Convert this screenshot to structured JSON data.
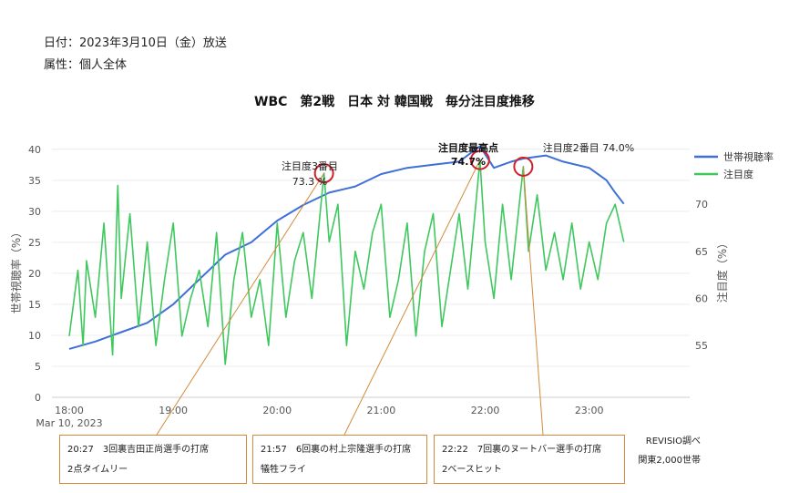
{
  "header": {
    "date_line": "日付：2023年3月10日（金）放送",
    "attr_line": "属性：個人全体"
  },
  "chart_data": {
    "type": "line",
    "title": "WBC　第2戦　日本 対 韓国戦　毎分注目度推移",
    "xlabel": "",
    "ylabel_left": "世帯視聴率（%）",
    "ylabel_right": "注目度（%）",
    "x_ticks": [
      "18:00",
      "19:00",
      "20:00",
      "21:00",
      "22:00",
      "23:00"
    ],
    "x_sub_label": "Mar 10, 2023",
    "x_range": [
      "17:50",
      "23:58"
    ],
    "y_left_range": [
      0,
      41
    ],
    "y_left_ticks": [
      0,
      5,
      10,
      15,
      20,
      25,
      30,
      35,
      40
    ],
    "y_right_range": [
      49.5,
      76.5
    ],
    "y_right_ticks": [
      55,
      60,
      65,
      70
    ],
    "grid": true,
    "legend_position": "top-right",
    "series": [
      {
        "name": "世帯視聴率",
        "axis": "left",
        "color": "#3f6fd8",
        "points": [
          [
            "18:00",
            7.8
          ],
          [
            "18:15",
            9
          ],
          [
            "18:30",
            10.5
          ],
          [
            "18:45",
            12
          ],
          [
            "19:00",
            15
          ],
          [
            "19:15",
            19
          ],
          [
            "19:30",
            23
          ],
          [
            "19:45",
            25
          ],
          [
            "20:00",
            28.5
          ],
          [
            "20:15",
            31
          ],
          [
            "20:30",
            33
          ],
          [
            "20:45",
            34
          ],
          [
            "21:00",
            36
          ],
          [
            "21:15",
            37
          ],
          [
            "21:30",
            37.5
          ],
          [
            "21:45",
            38
          ],
          [
            "21:57",
            40.5
          ],
          [
            "22:05",
            37
          ],
          [
            "22:15",
            38
          ],
          [
            "22:22",
            38.5
          ],
          [
            "22:35",
            39
          ],
          [
            "22:45",
            38
          ],
          [
            "23:00",
            37
          ],
          [
            "23:10",
            35
          ],
          [
            "23:15",
            33
          ],
          [
            "23:20",
            31.2
          ]
        ]
      },
      {
        "name": "注目度",
        "axis": "right",
        "color": "#3ec85e",
        "points": [
          [
            "18:00",
            56
          ],
          [
            "18:05",
            63
          ],
          [
            "18:08",
            55
          ],
          [
            "18:10",
            64
          ],
          [
            "18:15",
            58
          ],
          [
            "18:20",
            68
          ],
          [
            "18:25",
            54
          ],
          [
            "18:28",
            72
          ],
          [
            "18:30",
            60
          ],
          [
            "18:35",
            69
          ],
          [
            "18:40",
            57
          ],
          [
            "18:45",
            66
          ],
          [
            "18:50",
            55
          ],
          [
            "18:55",
            62
          ],
          [
            "19:00",
            68
          ],
          [
            "19:05",
            56
          ],
          [
            "19:10",
            60
          ],
          [
            "19:15",
            63
          ],
          [
            "19:20",
            57
          ],
          [
            "19:25",
            67
          ],
          [
            "19:30",
            53
          ],
          [
            "19:35",
            62
          ],
          [
            "19:40",
            67
          ],
          [
            "19:45",
            58
          ],
          [
            "19:50",
            62
          ],
          [
            "19:55",
            55
          ],
          [
            "20:00",
            68
          ],
          [
            "20:05",
            58
          ],
          [
            "20:10",
            64
          ],
          [
            "20:15",
            67
          ],
          [
            "20:20",
            60
          ],
          [
            "20:27",
            73.3
          ],
          [
            "20:30",
            66
          ],
          [
            "20:35",
            70
          ],
          [
            "20:40",
            55
          ],
          [
            "20:45",
            65
          ],
          [
            "20:50",
            61
          ],
          [
            "20:55",
            67
          ],
          [
            "21:00",
            70
          ],
          [
            "21:05",
            58
          ],
          [
            "21:10",
            62
          ],
          [
            "21:15",
            68
          ],
          [
            "21:20",
            56
          ],
          [
            "21:25",
            65
          ],
          [
            "21:30",
            69
          ],
          [
            "21:35",
            57
          ],
          [
            "21:40",
            63
          ],
          [
            "21:45",
            69
          ],
          [
            "21:50",
            61
          ],
          [
            "21:57",
            74.7
          ],
          [
            "22:00",
            66
          ],
          [
            "22:05",
            60
          ],
          [
            "22:10",
            70
          ],
          [
            "22:15",
            62
          ],
          [
            "22:22",
            74
          ],
          [
            "22:25",
            65
          ],
          [
            "22:30",
            71
          ],
          [
            "22:35",
            63
          ],
          [
            "22:40",
            67
          ],
          [
            "22:45",
            62
          ],
          [
            "22:50",
            68
          ],
          [
            "22:55",
            61
          ],
          [
            "23:00",
            66
          ],
          [
            "23:05",
            62
          ],
          [
            "23:10",
            68
          ],
          [
            "23:15",
            70
          ],
          [
            "23:20",
            66
          ]
        ]
      }
    ],
    "annotations": [
      {
        "label": "注目度3番目",
        "value": "73.3 %",
        "time": "20:27",
        "y_right": 73.3,
        "bold": false
      },
      {
        "label": "注目度最高点",
        "value": "74.7%",
        "time": "21:57",
        "y_right": 74.7,
        "bold": true
      },
      {
        "label": "注目度2番目",
        "value": "74.0%",
        "time": "22:22",
        "y_right": 74.0,
        "bold": false
      }
    ]
  },
  "notes": [
    {
      "line1": "20:27　3回裏吉田正尚選手の打席",
      "line2": "2点タイムリー"
    },
    {
      "line1": "21:57　6回裏の村上宗隆選手の打席",
      "line2": "犠牲フライ"
    },
    {
      "line1": "22:22　7回裏のヌートバー選手の打席",
      "line2": "2ベースヒット"
    }
  ],
  "source": {
    "line1": "REVISIO調べ",
    "line2": "関東2,000世帯"
  }
}
